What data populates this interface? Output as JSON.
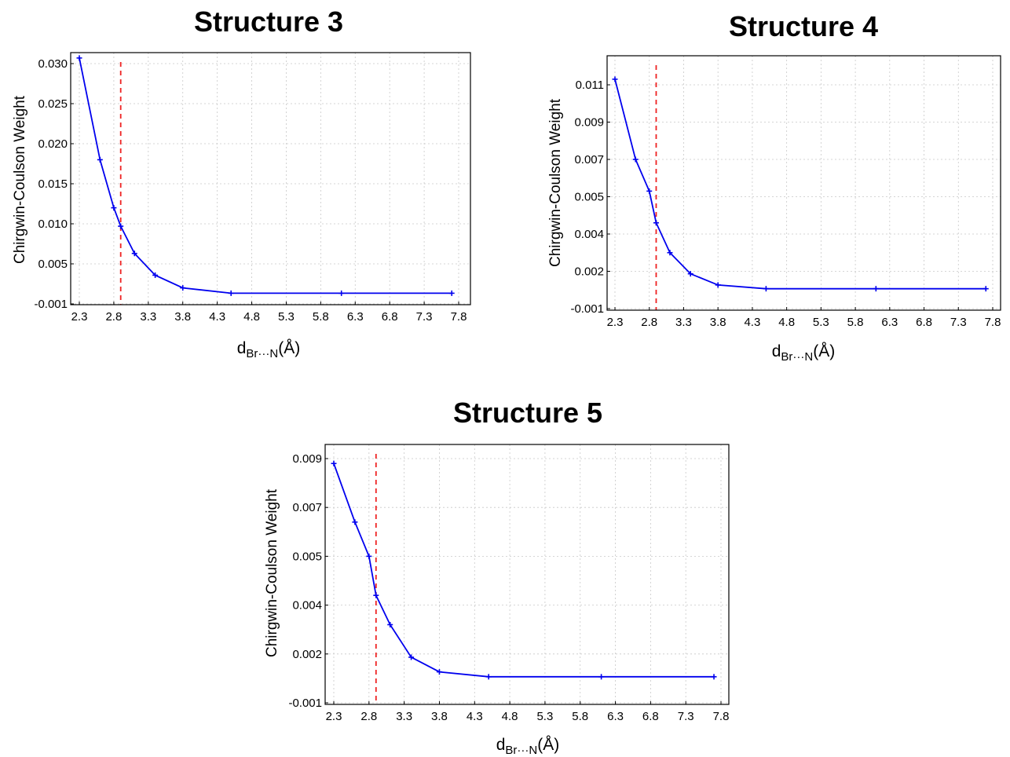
{
  "chart_data": [
    {
      "type": "line",
      "title": "Structure 3",
      "xlabel": {
        "base": "d",
        "subscript": "Br···N",
        "unit": "(Å)"
      },
      "ylabel": "Chirgwin-Coulson Weight",
      "xlim": [
        2.3,
        7.8
      ],
      "xticks": [
        "2.3",
        "2.8",
        "3.3",
        "3.8",
        "4.3",
        "4.8",
        "5.3",
        "5.8",
        "6.3",
        "6.8",
        "7.3",
        "7.8"
      ],
      "yticks": [
        "-0.001",
        "0.005",
        "0.010",
        "0.015",
        "0.020",
        "0.025",
        "0.030"
      ],
      "grid": true,
      "reference_line_x": 2.9,
      "color": "#0000ee",
      "reference_color": "#ee2222",
      "series": [
        {
          "x": [
            2.3,
            2.6,
            2.8,
            2.9,
            3.1,
            3.4,
            3.8,
            4.5,
            6.1,
            7.7
          ],
          "y": [
            0.0307,
            0.018,
            0.012,
            0.0097,
            0.0063,
            0.0033,
            0.0014,
            0.0006,
            0.0006,
            0.0006
          ]
        }
      ]
    },
    {
      "type": "line",
      "title": "Structure 4",
      "xlabel": {
        "base": "d",
        "subscript": "Br···N",
        "unit": "(Å)"
      },
      "ylabel": "Chirgwin-Coulson Weight",
      "xlim": [
        2.3,
        7.8
      ],
      "xticks": [
        "2.3",
        "2.8",
        "3.3",
        "3.8",
        "4.3",
        "4.8",
        "5.3",
        "5.8",
        "6.3",
        "6.8",
        "7.3",
        "7.8"
      ],
      "yticks": [
        "-0.001",
        "0.002",
        "0.004",
        "0.005",
        "0.007",
        "0.009",
        "0.011"
      ],
      "grid": true,
      "reference_line_x": 2.9,
      "color": "#0000ee",
      "reference_color": "#ee2222",
      "series": [
        {
          "x": [
            2.3,
            2.6,
            2.8,
            2.9,
            3.1,
            3.4,
            3.8,
            4.5,
            6.1,
            7.7
          ],
          "y": [
            0.0113,
            0.007,
            0.0053,
            0.0043,
            0.003,
            0.0018,
            0.0009,
            0.0006,
            0.0006,
            0.0006
          ]
        }
      ]
    },
    {
      "type": "line",
      "title": "Structure 5",
      "xlabel": {
        "base": "d",
        "subscript": "Br···N",
        "unit": "(Å)"
      },
      "ylabel": "Chirgwin-Coulson Weight",
      "xlim": [
        2.3,
        7.8
      ],
      "xticks": [
        "2.3",
        "2.8",
        "3.3",
        "3.8",
        "4.3",
        "4.8",
        "5.3",
        "5.8",
        "6.3",
        "6.8",
        "7.3",
        "7.8"
      ],
      "yticks": [
        "-0.001",
        "0.002",
        "0.004",
        "0.005",
        "0.007",
        "0.009"
      ],
      "grid": true,
      "reference_line_x": 2.9,
      "color": "#0000ee",
      "reference_color": "#ee2222",
      "series": [
        {
          "x": [
            2.3,
            2.6,
            2.8,
            2.9,
            3.1,
            3.4,
            3.8,
            4.5,
            6.1,
            7.7
          ],
          "y": [
            0.0088,
            0.0064,
            0.005,
            0.0042,
            0.0032,
            0.0018,
            0.0009,
            0.0006,
            0.0006,
            0.0006
          ]
        }
      ]
    }
  ]
}
